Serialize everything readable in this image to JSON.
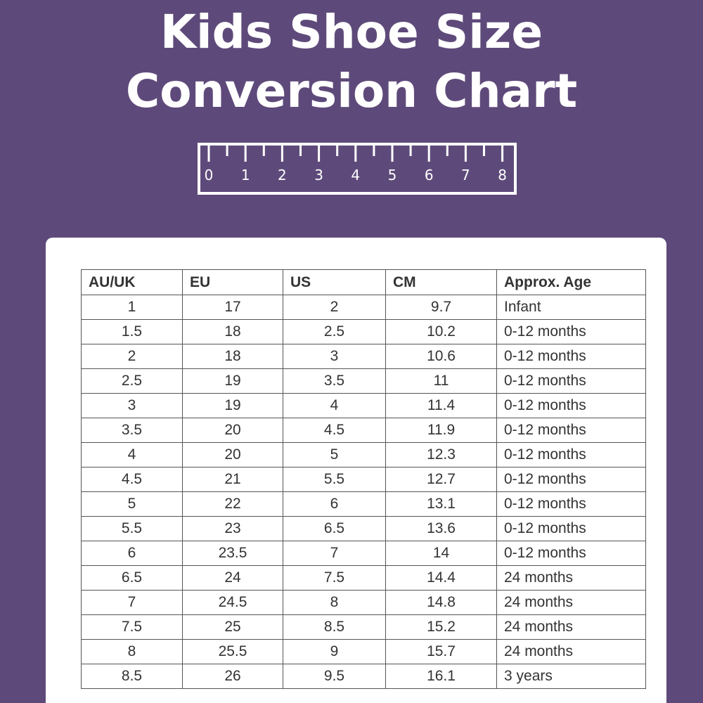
{
  "header": {
    "title": "Kids Shoe Size Conversion Chart"
  },
  "ruler": {
    "labels": [
      "0",
      "1",
      "2",
      "3",
      "4",
      "5",
      "6",
      "7",
      "8"
    ]
  },
  "table": {
    "columns": [
      "AU/UK",
      "EU",
      "US",
      "CM",
      "Approx. Age"
    ],
    "rows": [
      [
        "1",
        "17",
        "2",
        "9.7",
        "Infant"
      ],
      [
        "1.5",
        "18",
        "2.5",
        "10.2",
        "0-12 months"
      ],
      [
        "2",
        "18",
        "3",
        "10.6",
        "0-12 months"
      ],
      [
        "2.5",
        "19",
        "3.5",
        "11",
        "0-12 months"
      ],
      [
        "3",
        "19",
        "4",
        "11.4",
        "0-12 months"
      ],
      [
        "3.5",
        "20",
        "4.5",
        "11.9",
        "0-12 months"
      ],
      [
        "4",
        "20",
        "5",
        "12.3",
        "0-12 months"
      ],
      [
        "4.5",
        "21",
        "5.5",
        "12.7",
        "0-12 months"
      ],
      [
        "5",
        "22",
        "6",
        "13.1",
        "0-12 months"
      ],
      [
        "5.5",
        "23",
        "6.5",
        "13.6",
        "0-12 months"
      ],
      [
        "6",
        "23.5",
        "7",
        "14",
        "0-12 months"
      ],
      [
        "6.5",
        "24",
        "7.5",
        "14.4",
        "24 months"
      ],
      [
        "7",
        "24.5",
        "8",
        "14.8",
        "24 months"
      ],
      [
        "7.5",
        "25",
        "8.5",
        "15.2",
        "24 months"
      ],
      [
        "8",
        "25.5",
        "9",
        "15.7",
        "24 months"
      ],
      [
        "8.5",
        "26",
        "9.5",
        "16.1",
        "3 years"
      ]
    ]
  }
}
